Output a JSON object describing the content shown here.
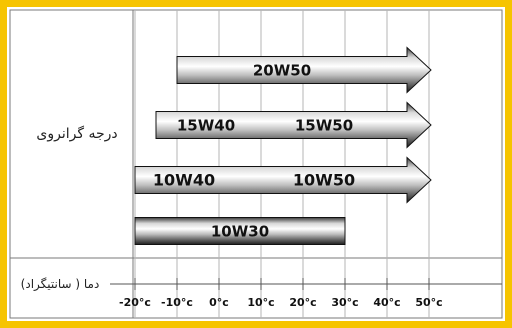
{
  "frame_color": "#f6c400",
  "labels": {
    "viscosity_grade": "درجه گرانروی",
    "temperature": "دما ( سانتیگراد)"
  },
  "chart_data": {
    "type": "range-bar",
    "x_unit": "°c",
    "ticks": [
      "-20°c",
      "-10°c",
      "0°c",
      "10°c",
      "20°c",
      "30°c",
      "40°c",
      "50°c"
    ],
    "tick_values": [
      -20,
      -10,
      0,
      10,
      20,
      30,
      40,
      50
    ],
    "bars": [
      {
        "labels": [
          "20W50"
        ],
        "start": -10,
        "end": 50,
        "arrow": true
      },
      {
        "labels": [
          "15W40",
          "15W50"
        ],
        "start": -15,
        "end": 50,
        "arrow": true
      },
      {
        "labels": [
          "10W40",
          "10W50"
        ],
        "start": -20,
        "end": 50,
        "arrow": true
      },
      {
        "labels": [
          "10W30"
        ],
        "start": -20,
        "end": 30,
        "arrow": false
      }
    ]
  }
}
